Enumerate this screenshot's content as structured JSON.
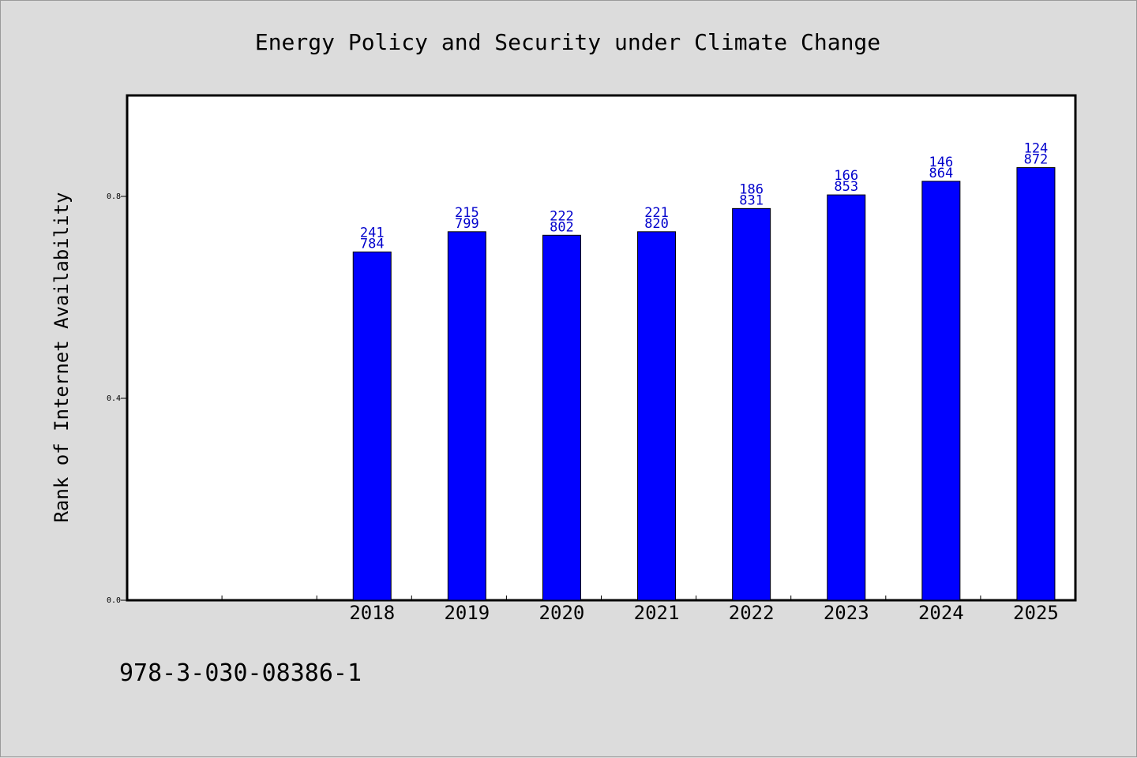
{
  "chart_data": {
    "type": "bar",
    "title": "Energy Policy and Security under Climate Change",
    "ylabel": "Rank of Internet Availability",
    "xlabel": "",
    "ylim": [
      0,
      1.0
    ],
    "yticks": [
      "0.0",
      "0.4",
      "0.8"
    ],
    "ytick_values": [
      0.0,
      0.4,
      0.8
    ],
    "categories": [
      "",
      "",
      "2018",
      "2019",
      "2020",
      "2021",
      "2022",
      "2023",
      "2024",
      "2025"
    ],
    "values": [
      null,
      null,
      0.69,
      0.73,
      0.723,
      0.73,
      0.776,
      0.803,
      0.83,
      0.857
    ],
    "bar_labels": [
      null,
      null,
      [
        "241",
        "784"
      ],
      [
        "215",
        "799"
      ],
      [
        "222",
        "802"
      ],
      [
        "221",
        "820"
      ],
      [
        "186",
        "831"
      ],
      [
        "166",
        "853"
      ],
      [
        "146",
        "864"
      ],
      [
        "124",
        "872"
      ]
    ],
    "bar_color": "#0000ff",
    "label_color": "#0000cc",
    "grid": false,
    "legend": "none"
  },
  "footer": {
    "isbn": "978-3-030-08386-1"
  }
}
